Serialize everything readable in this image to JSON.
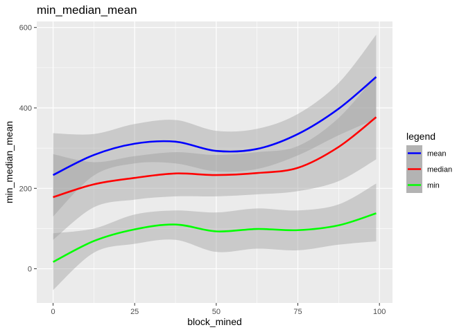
{
  "chart_data": {
    "type": "line",
    "title": "min_median_mean",
    "xlabel": "block_mined",
    "ylabel": "min_median_mean",
    "xlim": [
      -5,
      104
    ],
    "ylim": [
      -85,
      615
    ],
    "x_ticks": [
      0,
      25,
      50,
      75,
      100
    ],
    "y_ticks": [
      0,
      200,
      400,
      600
    ],
    "grid": true,
    "legend": {
      "title": "legend",
      "position": "right"
    },
    "x": [
      0,
      12.5,
      25,
      37.5,
      50,
      62.5,
      75,
      87.5,
      99
    ],
    "series": [
      {
        "name": "mean",
        "color": "#0000ff",
        "values": [
          233,
          283,
          311,
          316,
          293,
          298,
          335,
          398,
          477
        ],
        "ci_lower": [
          130,
          232,
          262,
          262,
          242,
          248,
          282,
          332,
          373
        ],
        "ci_upper": [
          337,
          335,
          360,
          370,
          343,
          348,
          385,
          462,
          582
        ]
      },
      {
        "name": "median",
        "color": "#ff0000",
        "values": [
          178,
          210,
          226,
          237,
          233,
          238,
          251,
          303,
          377
        ],
        "ci_lower": [
          72,
          153,
          172,
          180,
          180,
          185,
          193,
          218,
          272
        ],
        "ci_upper": [
          285,
          265,
          280,
          290,
          283,
          290,
          305,
          375,
          482
        ]
      },
      {
        "name": "min",
        "color": "#00ff00",
        "values": [
          17,
          69,
          98,
          110,
          93,
          99,
          96,
          108,
          138
        ],
        "ci_lower": [
          -53,
          40,
          62,
          72,
          42,
          50,
          46,
          60,
          68
        ],
        "ci_upper": [
          88,
          100,
          135,
          145,
          140,
          150,
          145,
          160,
          212
        ]
      }
    ]
  }
}
